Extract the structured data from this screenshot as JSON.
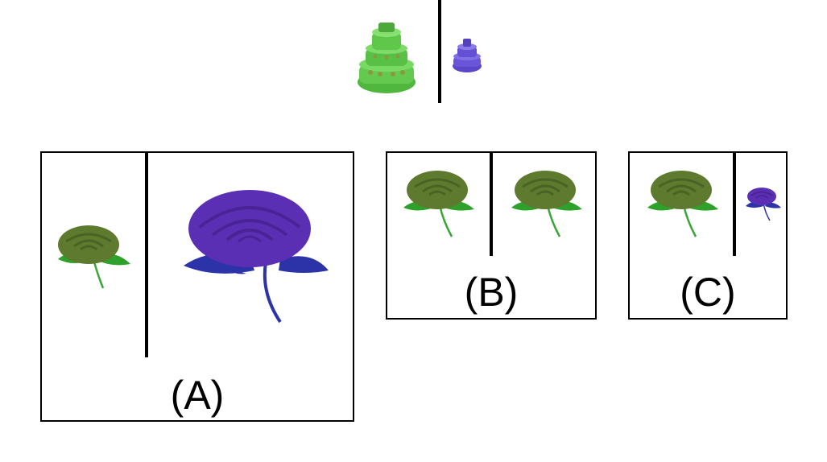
{
  "example": {
    "big_object": "cake-icon",
    "small_object": "cake-icon",
    "big_color": "#63c94f",
    "small_color": "#6a55d8"
  },
  "options": [
    {
      "label": "(A)",
      "left_color": "#5d7a2e",
      "right_color": "#5b2fb3"
    },
    {
      "label": "(B)",
      "left_color": "#5d7a2e",
      "right_color": "#5d7a2e"
    },
    {
      "label": "(C)",
      "left_color": "#5d7a2e",
      "right_color": "#5b2fb3"
    }
  ],
  "colors": {
    "leaf_green": "#2ea12a",
    "stem_green": "#38a535",
    "leaf_blue": "#2c33a8"
  }
}
